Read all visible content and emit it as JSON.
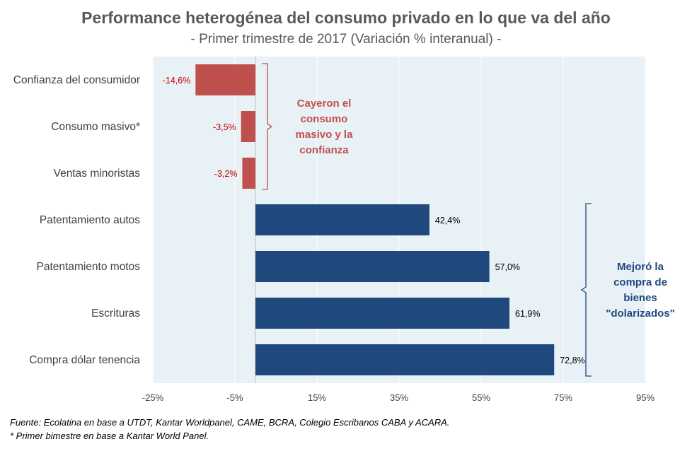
{
  "title": "Performance heterogénea del consumo privado en lo que va del año",
  "subtitle": "- Primer trimestre de 2017 (Variación % interanual) -",
  "footnotes": [
    "Fuente: Ecolatina en base a UTDT, Kantar Worldpanel, CAME, BCRA, Colegio Escribanos CABA y ACARA.",
    "* Primer bimestre en base a Kantar World Panel."
  ],
  "colors": {
    "negative": "#C0504D",
    "positive": "#1F497D",
    "plot_bg": "#E8F1F5",
    "grid": "#FFFFFF",
    "negative_label": "#C00000",
    "positive_label": "#000000"
  },
  "chart_data": {
    "type": "bar",
    "orientation": "horizontal",
    "categories": [
      "Confianza del consumidor",
      "Consumo masivo*",
      "Ventas minoristas",
      "Patentamiento autos",
      "Patentamiento motos",
      "Escrituras",
      "Compra dólar tenencia"
    ],
    "values": [
      -14.6,
      -3.5,
      -3.2,
      42.4,
      57.0,
      61.9,
      72.8
    ],
    "value_labels": [
      "-14,6%",
      "-3,5%",
      "-3,2%",
      "42,4%",
      "57,0%",
      "61,9%",
      "72,8%"
    ],
    "xlim": [
      -25,
      95
    ],
    "x_ticks": [
      -25,
      -5,
      15,
      35,
      55,
      75,
      95
    ],
    "x_tick_labels": [
      "-25%",
      "-5%",
      "15%",
      "35%",
      "55%",
      "75%",
      "95%"
    ],
    "grid": true,
    "annotations": [
      {
        "lines": [
          "Cayeron el",
          "consumo",
          "masivo y la",
          "confianza"
        ],
        "color": "#C0504D",
        "bracket_rows": [
          0,
          2
        ]
      },
      {
        "lines": [
          "Mejoró la",
          "compra de",
          "bienes",
          "\"dolarizados\""
        ],
        "color": "#1F497D",
        "bracket_rows": [
          3,
          6
        ]
      }
    ]
  }
}
